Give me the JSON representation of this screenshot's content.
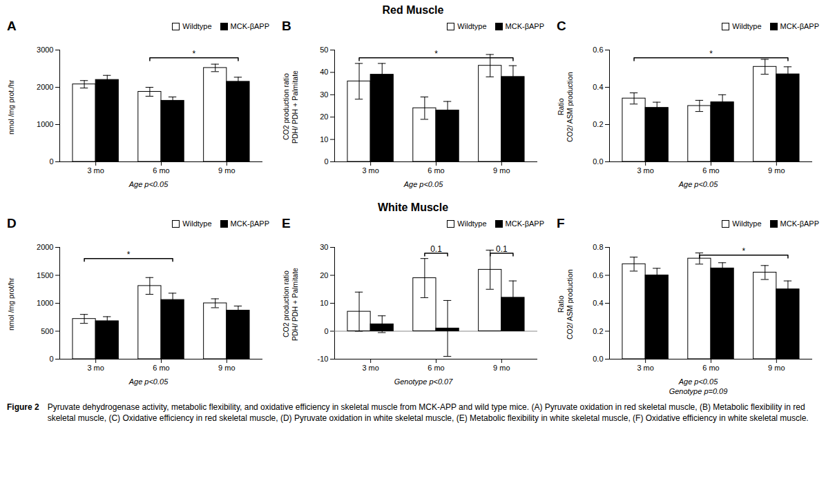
{
  "chart_data": [
    {
      "type": "bar",
      "title": "A",
      "section": "Red Muscle",
      "categories": [
        "3 mo",
        "6 mo",
        "9 mo"
      ],
      "series": [
        {
          "name": "Wildtype",
          "color": "white",
          "values": [
            2080,
            1880,
            2520
          ],
          "errors": [
            100,
            120,
            100
          ]
        },
        {
          "name": "MCK-βAPP",
          "color": "black",
          "values": [
            2200,
            1640,
            2150
          ],
          "errors": [
            120,
            100,
            120
          ]
        }
      ],
      "ylabel": "nmol /mg prot./hr",
      "xlabel": "Age p<0.05",
      "ylim": [
        0,
        3000
      ],
      "yticks": [
        0,
        1000,
        2000,
        3000
      ],
      "grid": false,
      "legend": "upper right",
      "annotations": [
        {
          "text": "*",
          "from": {
            "category": "6 mo",
            "series": "Wildtype"
          },
          "to": {
            "category": "9 mo",
            "series": "MCK-βAPP"
          },
          "y": 2790
        }
      ]
    },
    {
      "type": "bar",
      "title": "B",
      "section": "Red Muscle",
      "categories": [
        "3 mo",
        "6 mo",
        "9 mo"
      ],
      "series": [
        {
          "name": "Wildtype",
          "color": "white",
          "values": [
            36,
            24,
            43
          ],
          "errors": [
            8,
            5,
            5
          ]
        },
        {
          "name": "MCK-βAPP",
          "color": "black",
          "values": [
            39,
            23,
            38
          ],
          "errors": [
            5,
            4,
            5
          ]
        }
      ],
      "ylabel": "CO2 production ratio\nPDH/ PDH + Palmitate",
      "xlabel": "Age p<0.05",
      "ylim": [
        0,
        50
      ],
      "yticks": [
        0,
        10,
        20,
        30,
        40,
        50
      ],
      "grid": false,
      "legend": "upper right",
      "annotations": [
        {
          "text": "*",
          "from": {
            "category": "3 mo",
            "series": "Wildtype"
          },
          "to": {
            "category": "9 mo",
            "series": "MCK-βAPP"
          },
          "y": 46.5
        }
      ]
    },
    {
      "type": "bar",
      "title": "C",
      "section": "Red Muscle",
      "categories": [
        "3 mo",
        "6 mo",
        "9 mo"
      ],
      "series": [
        {
          "name": "Wildtype",
          "color": "white",
          "values": [
            0.34,
            0.3,
            0.51
          ],
          "errors": [
            0.03,
            0.03,
            0.04
          ]
        },
        {
          "name": "MCK-βAPP",
          "color": "black",
          "values": [
            0.29,
            0.32,
            0.47
          ],
          "errors": [
            0.03,
            0.04,
            0.04
          ]
        }
      ],
      "ylabel": "Ratio\nCO2/ ASM production",
      "xlabel": "Age p<0.05",
      "ylim": [
        0.0,
        0.6
      ],
      "yticks": [
        {
          "value": 0,
          "label": "0.0"
        },
        0.2,
        0.4,
        0.6
      ],
      "grid": false,
      "legend": "upper right",
      "annotations": [
        {
          "text": "*",
          "from": {
            "category": "3 mo",
            "series": "Wildtype"
          },
          "to": {
            "category": "9 mo",
            "series": "MCK-βAPP"
          },
          "y": 0.558
        }
      ]
    },
    {
      "type": "bar",
      "title": "D",
      "section": "White Muscle",
      "categories": [
        "3 mo",
        "6 mo",
        "9 mo"
      ],
      "series": [
        {
          "name": "Wildtype",
          "color": "white",
          "values": [
            720,
            1310,
            1000
          ],
          "errors": [
            80,
            150,
            80
          ]
        },
        {
          "name": "MCK-βAPP",
          "color": "black",
          "values": [
            680,
            1060,
            870
          ],
          "errors": [
            80,
            120,
            80
          ]
        }
      ],
      "ylabel": "nmol /mg prot/hr",
      "xlabel": "Age p<0.05",
      "ylim": [
        0,
        2000
      ],
      "yticks": [
        0,
        500,
        1000,
        1500,
        2000
      ],
      "grid": false,
      "legend": "upper right",
      "annotations": [
        {
          "text": "*",
          "from": {
            "category": "3 mo",
            "series": "Wildtype"
          },
          "to": {
            "category": "6 mo",
            "series": "MCK-βAPP"
          },
          "y": 1800
        }
      ]
    },
    {
      "type": "bar",
      "title": "E",
      "section": "White Muscle",
      "categories": [
        "3 mo",
        "6 mo",
        "9 mo"
      ],
      "series": [
        {
          "name": "Wildtype",
          "color": "white",
          "values": [
            7,
            19,
            22
          ],
          "errors": [
            7,
            7,
            7
          ]
        },
        {
          "name": "MCK-βAPP",
          "color": "black",
          "values": [
            2.5,
            1,
            12
          ],
          "errors": [
            3,
            10,
            6
          ]
        }
      ],
      "ylabel": "CO2 production ratio\nPDH/ PDH + Palmitate",
      "xlabel": "Genotype p<0.07",
      "ylim": [
        -10,
        30
      ],
      "yticks": [
        -10,
        0,
        10,
        20,
        30
      ],
      "grid": false,
      "legend": "upper right",
      "annotations": [
        {
          "text": "0.1",
          "from": {
            "category": "6 mo",
            "series": "Wildtype"
          },
          "to": {
            "category": "6 mo",
            "series": "MCK-βAPP"
          },
          "y": 27.9
        },
        {
          "text": "0.1",
          "from": {
            "category": "9 mo",
            "series": "Wildtype"
          },
          "to": {
            "category": "9 mo",
            "series": "MCK-βAPP"
          },
          "y": 27.9
        }
      ]
    },
    {
      "type": "bar",
      "title": "F",
      "section": "White Muscle",
      "categories": [
        "3 mo",
        "6 mo",
        "9 mo"
      ],
      "series": [
        {
          "name": "Wildtype",
          "color": "white",
          "values": [
            0.68,
            0.72,
            0.62
          ],
          "errors": [
            0.05,
            0.04,
            0.05
          ]
        },
        {
          "name": "MCK-βAPP",
          "color": "black",
          "values": [
            0.6,
            0.65,
            0.5
          ],
          "errors": [
            0.05,
            0.04,
            0.06
          ]
        }
      ],
      "ylabel": "Ratio\nCO2/ ASM production",
      "xlabel": "Age p<0.05\nGenotype p=0.09",
      "ylim": [
        0.0,
        0.8
      ],
      "yticks": [
        {
          "value": 0,
          "label": "0.0"
        },
        0.2,
        0.4,
        0.6,
        0.8
      ],
      "grid": false,
      "legend": "upper right",
      "annotations": [
        {
          "text": "*",
          "from": {
            "category": "6 mo",
            "series": "Wildtype"
          },
          "to": {
            "category": "9 mo",
            "series": "MCK-βAPP"
          },
          "y": 0.744
        }
      ]
    }
  ],
  "caption_label": "Figure 2",
  "caption": "Pyruvate dehydrogenase activity, metabolic flexibility, and oxidative efficiency in skeletal muscle from MCK-APP and wild type mice. (A) Pyruvate oxidation in red skeletal muscle, (B) Metabolic flexibility in red skeletal muscle, (C) Oxidative efficiency in red skeletal muscle, (D) Pyruvate oxidation in white skeletal muscle, (E) Metabolic flexibility in white skeletal muscle, (F) Oxidative efficiency in white skeletal muscle."
}
